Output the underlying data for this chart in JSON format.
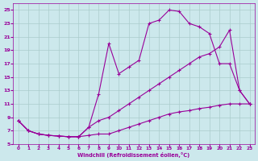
{
  "bg_color": "#cce8ec",
  "grid_color": "#aacccc",
  "line_color": "#990099",
  "xlabel": "Windchill (Refroidissement éolien,°C)",
  "xlim": [
    -0.5,
    23.5
  ],
  "ylim": [
    5,
    26
  ],
  "yticks": [
    5,
    7,
    9,
    11,
    13,
    15,
    17,
    19,
    21,
    23,
    25
  ],
  "xticks": [
    0,
    1,
    2,
    3,
    4,
    5,
    6,
    7,
    8,
    9,
    10,
    11,
    12,
    13,
    14,
    15,
    16,
    17,
    18,
    19,
    20,
    21,
    22,
    23
  ],
  "line1_x": [
    0,
    1,
    2,
    3,
    4,
    5,
    6,
    7,
    8,
    9,
    10,
    11,
    12,
    13,
    14,
    15,
    16,
    17,
    18,
    19,
    20,
    21,
    22,
    23
  ],
  "line1_y": [
    8.5,
    7.0,
    6.5,
    6.3,
    6.2,
    6.1,
    6.1,
    6.3,
    6.5,
    6.5,
    7.0,
    7.5,
    8.0,
    8.5,
    9.0,
    9.5,
    9.8,
    10.0,
    10.3,
    10.5,
    10.8,
    11.0,
    11.0,
    11.0
  ],
  "line2_x": [
    0,
    1,
    2,
    3,
    4,
    5,
    6,
    7,
    8,
    9,
    10,
    11,
    12,
    13,
    14,
    15,
    16,
    17,
    18,
    19,
    20,
    21,
    22,
    23
  ],
  "line2_y": [
    8.5,
    7.0,
    6.5,
    6.3,
    6.2,
    6.1,
    6.1,
    7.5,
    12.5,
    20.0,
    15.5,
    16.5,
    17.5,
    23.0,
    23.5,
    25.0,
    24.8,
    23.0,
    22.5,
    21.5,
    17.0,
    17.0,
    13.0,
    11.0
  ],
  "line3_x": [
    0,
    1,
    2,
    3,
    4,
    5,
    6,
    7,
    8,
    9,
    10,
    11,
    12,
    13,
    14,
    15,
    16,
    17,
    18,
    19,
    20,
    21,
    22,
    23
  ],
  "line3_y": [
    8.5,
    7.0,
    6.5,
    6.3,
    6.2,
    6.1,
    6.1,
    7.5,
    8.5,
    9.0,
    10.0,
    11.0,
    12.0,
    13.0,
    14.0,
    15.0,
    16.0,
    17.0,
    18.0,
    18.5,
    19.5,
    22.0,
    13.0,
    11.0
  ]
}
